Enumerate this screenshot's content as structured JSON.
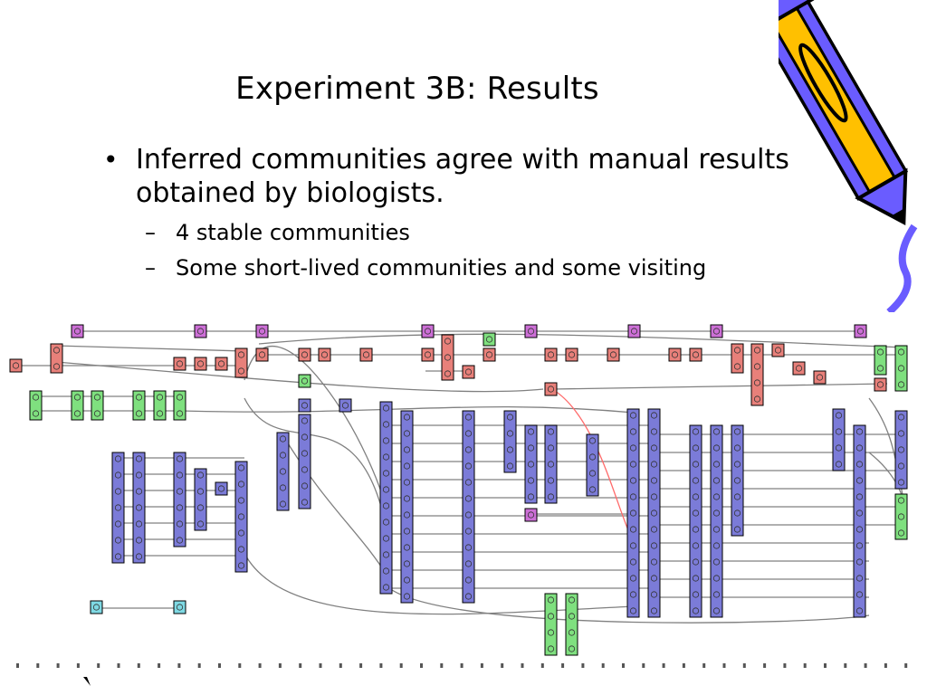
{
  "slide": {
    "title": "Experiment 3B: Results",
    "bullets": [
      {
        "text": "Inferred communities agree with manual results obtained by biologists.",
        "sub": [
          "4 stable communities",
          "Some short-lived communities and some visiting"
        ]
      }
    ]
  },
  "colors": {
    "community_blue": "#7b7bd8",
    "community_red": "#e8807a",
    "community_green": "#7fe07f",
    "community_magenta": "#cc6fd6",
    "community_cyan": "#7fd9e3",
    "edge_gray": "#808080",
    "edge_red": "#ff6a6a",
    "pencil_yellow": "#ffc000",
    "pencil_blue": "#6a5cff"
  },
  "icons": [
    "bullet-dot-icon",
    "dash-icon",
    "pencil-icon"
  ]
}
